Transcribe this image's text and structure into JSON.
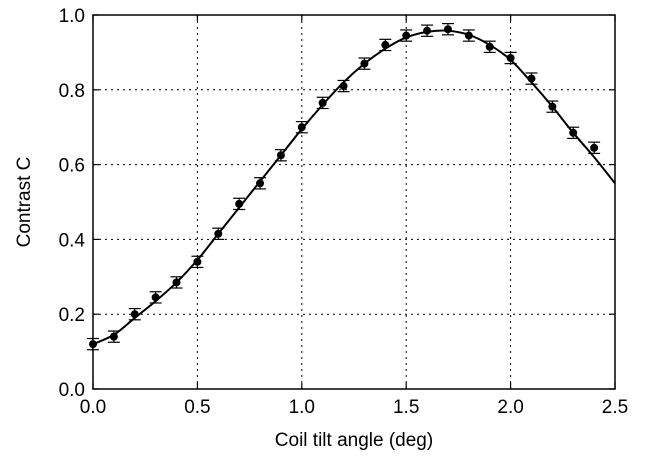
{
  "chart_data": {
    "type": "scatter",
    "title": "",
    "xlabel": "Coil tilt angle (deg)",
    "ylabel": "Contrast C",
    "xlim": [
      0.0,
      2.5
    ],
    "ylim": [
      0.0,
      1.0
    ],
    "xticks": [
      "0.0",
      "0.5",
      "1.0",
      "1.5",
      "2.0",
      "2.5"
    ],
    "yticks": [
      "0.0",
      "0.2",
      "0.4",
      "0.6",
      "0.8",
      "1.0"
    ],
    "grid": true,
    "colors": {
      "marker": "#000000",
      "fit": "#000000",
      "grid": "#000000"
    },
    "series": [
      {
        "kind": "points_with_errorbars",
        "x": [
          0.0,
          0.1,
          0.2,
          0.3,
          0.4,
          0.5,
          0.6,
          0.7,
          0.8,
          0.9,
          1.0,
          1.1,
          1.2,
          1.3,
          1.4,
          1.5,
          1.6,
          1.7,
          1.8,
          1.9,
          2.0,
          2.1,
          2.2,
          2.3,
          2.4
        ],
        "y": [
          0.12,
          0.14,
          0.2,
          0.245,
          0.285,
          0.34,
          0.415,
          0.495,
          0.55,
          0.625,
          0.7,
          0.765,
          0.81,
          0.87,
          0.92,
          0.945,
          0.958,
          0.962,
          0.945,
          0.915,
          0.885,
          0.83,
          0.755,
          0.685,
          0.645
        ],
        "yerr": [
          0.015,
          0.015,
          0.015,
          0.015,
          0.015,
          0.015,
          0.015,
          0.015,
          0.015,
          0.015,
          0.015,
          0.015,
          0.015,
          0.015,
          0.015,
          0.015,
          0.015,
          0.015,
          0.015,
          0.015,
          0.015,
          0.015,
          0.015,
          0.015,
          0.015
        ]
      },
      {
        "kind": "fit_line",
        "x": [
          0.0,
          0.1,
          0.2,
          0.3,
          0.4,
          0.5,
          0.6,
          0.7,
          0.8,
          0.9,
          1.0,
          1.1,
          1.2,
          1.3,
          1.4,
          1.5,
          1.6,
          1.7,
          1.8,
          1.9,
          2.0,
          2.1,
          2.2,
          2.3,
          2.4,
          2.5
        ],
        "y": [
          0.12,
          0.145,
          0.19,
          0.235,
          0.285,
          0.345,
          0.415,
          0.485,
          0.555,
          0.625,
          0.695,
          0.76,
          0.82,
          0.87,
          0.91,
          0.94,
          0.955,
          0.958,
          0.947,
          0.92,
          0.88,
          0.82,
          0.755,
          0.685,
          0.62,
          0.55
        ]
      }
    ]
  }
}
